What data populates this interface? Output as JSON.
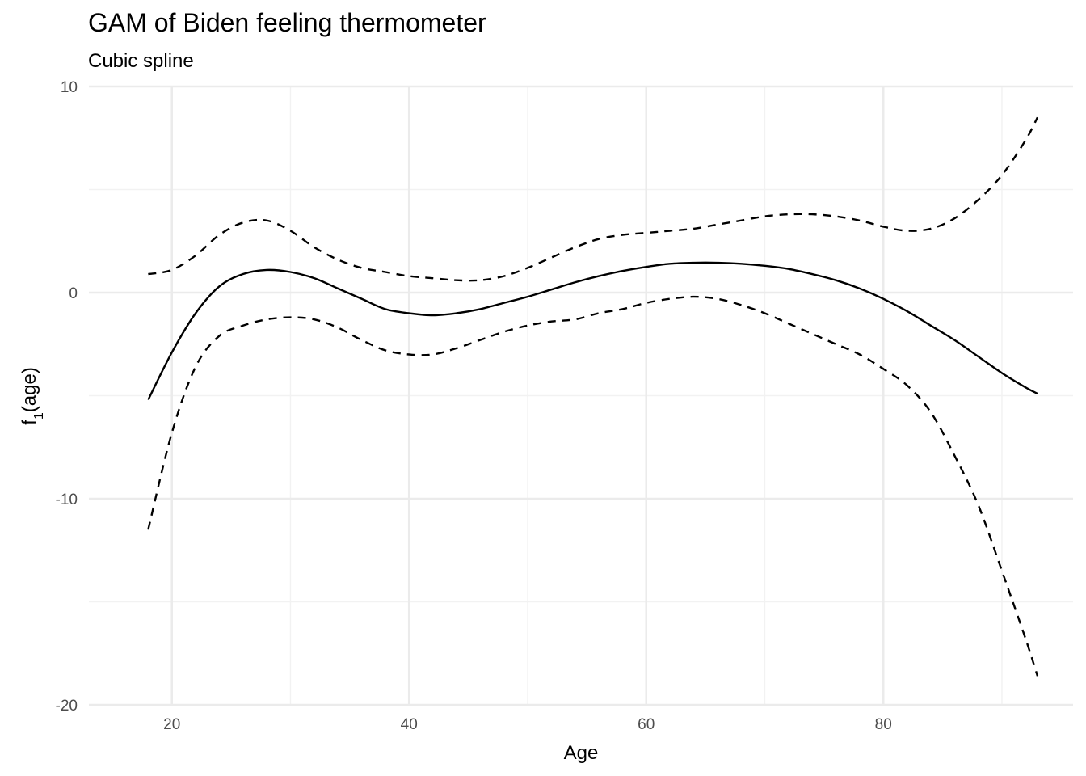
{
  "chart_data": {
    "type": "line",
    "title": "GAM of Biden feeling thermometer",
    "subtitle": "Cubic spline",
    "xlabel": "Age",
    "ylabel": {
      "base": "f",
      "subscript": "1",
      "rest": "(age)"
    },
    "xlim": [
      13,
      96
    ],
    "ylim": [
      -20,
      10
    ],
    "x_ticks": [
      20,
      40,
      60,
      80
    ],
    "x_tick_labels": [
      "20",
      "40",
      "60",
      "80"
    ],
    "y_ticks": [
      -20,
      -10,
      0,
      10
    ],
    "y_tick_labels": [
      "-20",
      "-10",
      "0",
      "10"
    ],
    "grid": true,
    "legend": "none",
    "colors": {
      "line": "#000000",
      "grid_major": "#ebebeb",
      "grid_minor": "#f2f2f2",
      "background": "#ffffff"
    },
    "series": [
      {
        "style": "solid",
        "x": [
          18,
          20,
          22,
          24,
          26,
          28,
          30,
          32,
          34,
          36,
          38,
          40,
          42,
          44,
          46,
          48,
          50,
          52,
          54,
          56,
          58,
          60,
          62,
          64,
          66,
          68,
          70,
          72,
          74,
          76,
          78,
          80,
          82,
          84,
          86,
          88,
          90,
          92,
          93
        ],
        "y": [
          -5.2,
          -2.9,
          -1.0,
          0.3,
          0.9,
          1.1,
          1.0,
          0.7,
          0.2,
          -0.3,
          -0.8,
          -1.0,
          -1.1,
          -1.0,
          -0.8,
          -0.5,
          -0.2,
          0.15,
          0.5,
          0.8,
          1.05,
          1.25,
          1.4,
          1.45,
          1.45,
          1.4,
          1.3,
          1.15,
          0.9,
          0.6,
          0.2,
          -0.3,
          -0.9,
          -1.6,
          -2.3,
          -3.1,
          -3.9,
          -4.6,
          -4.9
        ]
      },
      {
        "style": "dashed",
        "x": [
          18,
          20,
          22,
          24,
          26,
          28,
          30,
          32,
          34,
          36,
          38,
          40,
          42,
          44,
          46,
          48,
          50,
          52,
          54,
          56,
          58,
          60,
          62,
          64,
          66,
          68,
          70,
          72,
          74,
          76,
          78,
          80,
          82,
          84,
          86,
          88,
          90,
          92,
          93
        ],
        "y": [
          0.9,
          1.1,
          1.8,
          2.8,
          3.4,
          3.5,
          3.0,
          2.2,
          1.6,
          1.2,
          1.0,
          0.8,
          0.7,
          0.6,
          0.6,
          0.8,
          1.2,
          1.7,
          2.2,
          2.6,
          2.8,
          2.9,
          3.0,
          3.1,
          3.3,
          3.5,
          3.7,
          3.8,
          3.8,
          3.7,
          3.5,
          3.2,
          3.0,
          3.1,
          3.6,
          4.5,
          5.7,
          7.4,
          8.5
        ]
      },
      {
        "style": "dashed",
        "x": [
          18,
          20,
          22,
          24,
          26,
          28,
          30,
          32,
          34,
          36,
          38,
          40,
          42,
          44,
          46,
          48,
          50,
          52,
          54,
          56,
          58,
          60,
          62,
          64,
          66,
          68,
          70,
          72,
          74,
          76,
          78,
          80,
          82,
          84,
          86,
          88,
          90,
          92,
          93
        ],
        "y": [
          -11.5,
          -6.8,
          -3.6,
          -2.1,
          -1.6,
          -1.3,
          -1.2,
          -1.3,
          -1.7,
          -2.3,
          -2.8,
          -3.0,
          -3.0,
          -2.7,
          -2.3,
          -1.9,
          -1.6,
          -1.4,
          -1.3,
          -1.0,
          -0.8,
          -0.5,
          -0.3,
          -0.2,
          -0.3,
          -0.6,
          -1.0,
          -1.5,
          -2.0,
          -2.5,
          -3.0,
          -3.7,
          -4.5,
          -5.8,
          -7.9,
          -10.3,
          -13.5,
          -16.8,
          -18.6
        ]
      }
    ]
  }
}
